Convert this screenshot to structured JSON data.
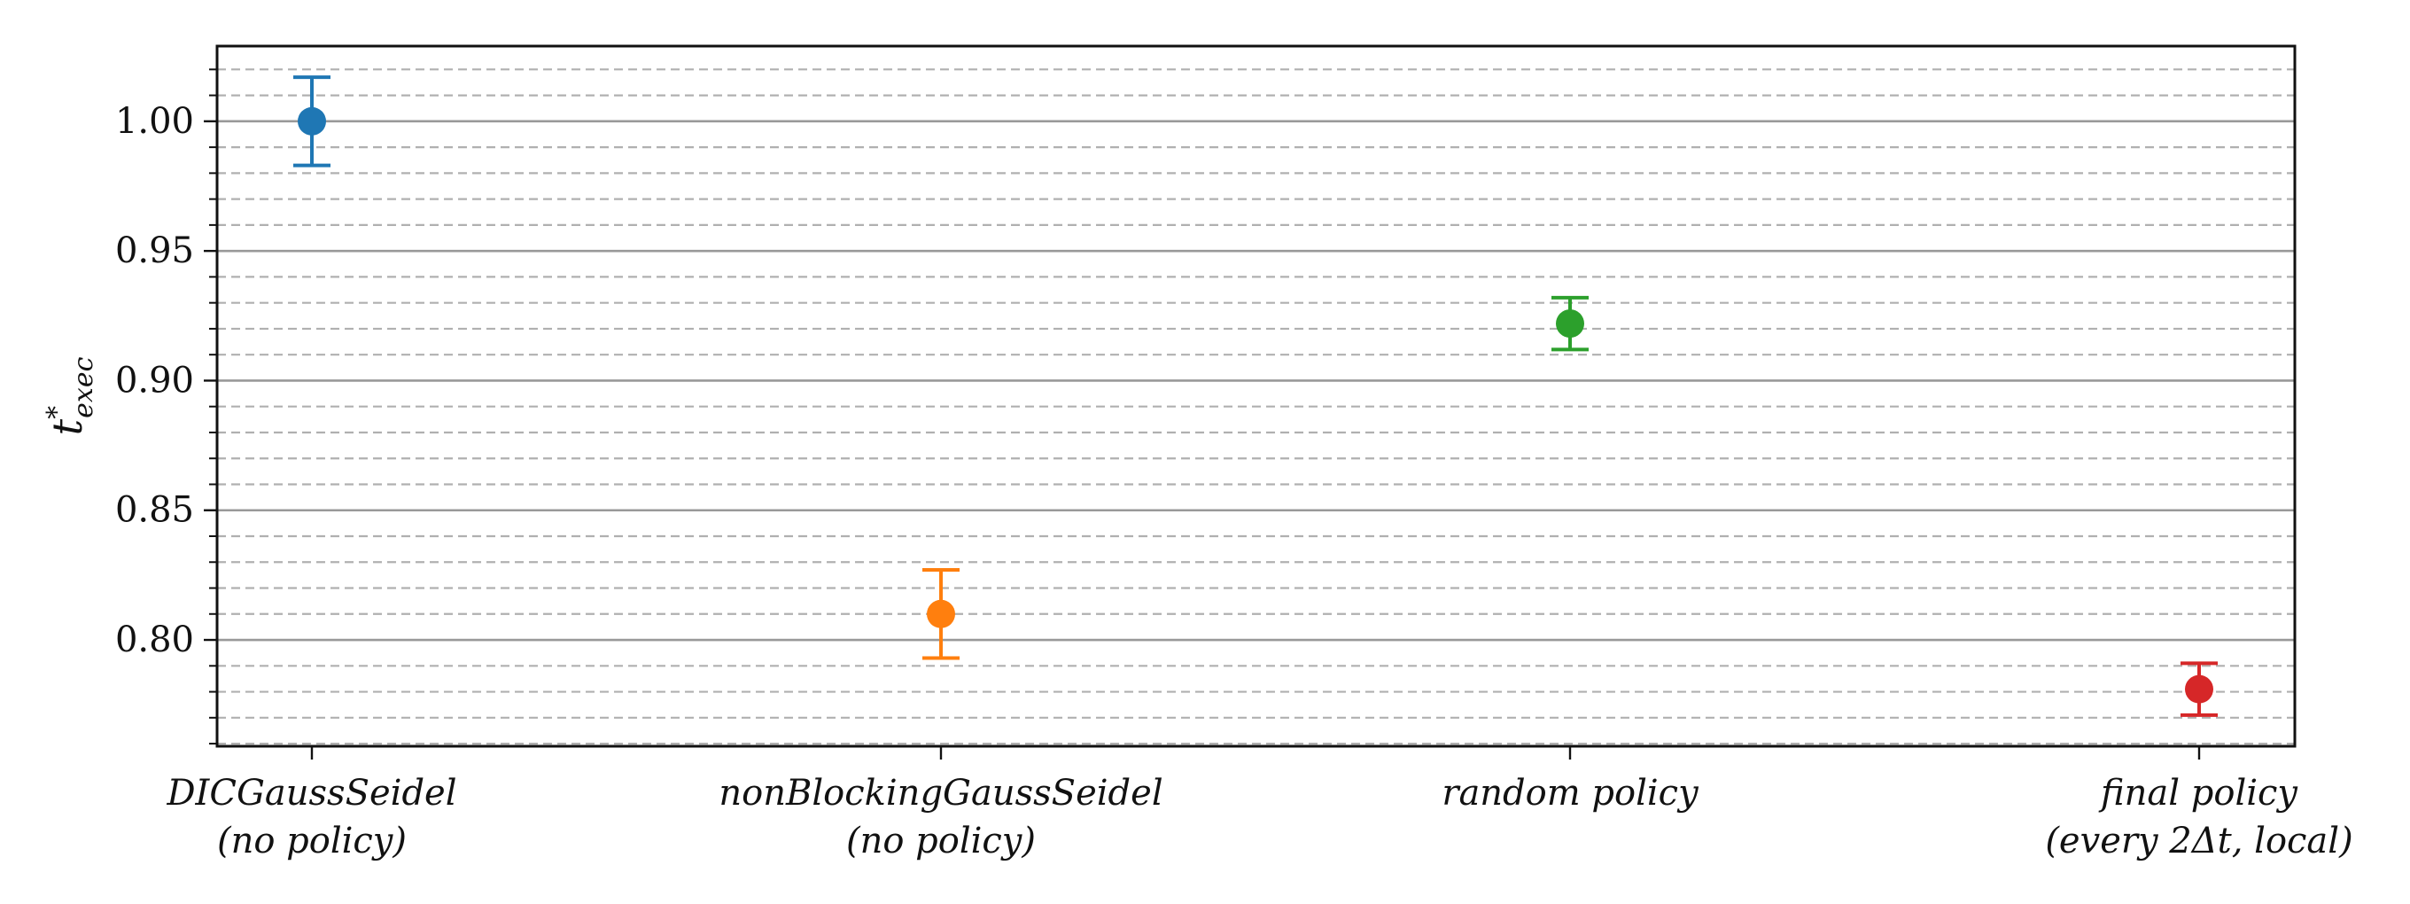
{
  "chart_data": {
    "type": "scatter",
    "ylabel": "t*exec",
    "ylabel_parts": {
      "base": "t",
      "sup": "*",
      "sub": "exec"
    },
    "ylim": [
      0.759,
      1.029
    ],
    "yticks": [
      0.8,
      0.85,
      0.9,
      0.95,
      1.0
    ],
    "ytick_labels": [
      "0.80",
      "0.85",
      "0.90",
      "0.95",
      "1.00"
    ],
    "minor_ystep": 0.01,
    "grid": {
      "major": "solid",
      "minor": "dashed"
    },
    "categories": [
      [
        "DICGaussSeidel",
        "(no policy)"
      ],
      [
        "nonBlockingGaussSeidel",
        "(no policy)"
      ],
      [
        "random policy"
      ],
      [
        "final policy",
        "(every 2Δt, local)"
      ]
    ],
    "points": [
      {
        "mean": 1.0,
        "err_low": 0.983,
        "err_high": 1.017,
        "color": "#1f77b4"
      },
      {
        "mean": 0.81,
        "err_low": 0.793,
        "err_high": 0.827,
        "color": "#ff7f0e"
      },
      {
        "mean": 0.922,
        "err_low": 0.912,
        "err_high": 0.932,
        "color": "#2ca02c"
      },
      {
        "mean": 0.781,
        "err_low": 0.771,
        "err_high": 0.791,
        "color": "#d62728"
      }
    ]
  }
}
